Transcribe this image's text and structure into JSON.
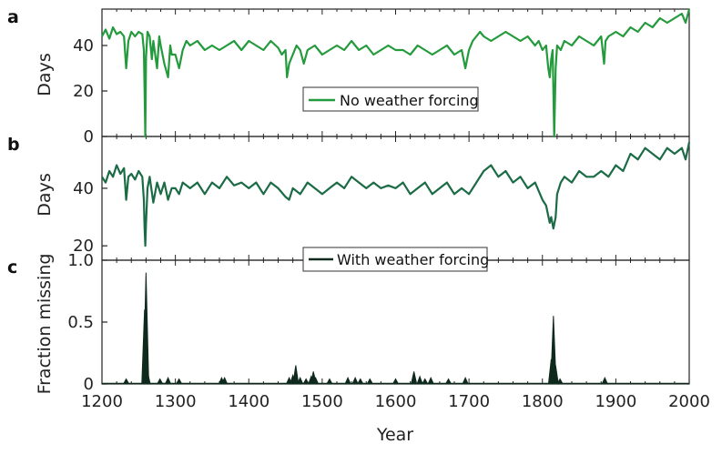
{
  "colors": {
    "series_a": "#239a3b",
    "series_b": "#1b6b45",
    "series_c": "#0f2a1c"
  },
  "chart_data": [
    {
      "panel": "a",
      "type": "line",
      "ylabel": "Days",
      "xlim": [
        1200,
        2000
      ],
      "ylim": [
        0,
        56
      ],
      "yticks": [
        0,
        20,
        40
      ],
      "legend": {
        "entry": "No weather forcing",
        "placement": "lower-center"
      },
      "series": [
        {
          "name": "No weather forcing",
          "x": [
            1200,
            1205,
            1210,
            1215,
            1220,
            1225,
            1230,
            1233,
            1236,
            1240,
            1245,
            1250,
            1255,
            1257,
            1258,
            1259,
            1260,
            1262,
            1265,
            1268,
            1270,
            1275,
            1278,
            1280,
            1285,
            1290,
            1293,
            1295,
            1300,
            1305,
            1310,
            1315,
            1320,
            1330,
            1340,
            1350,
            1360,
            1370,
            1380,
            1390,
            1400,
            1410,
            1420,
            1430,
            1440,
            1445,
            1450,
            1452,
            1455,
            1460,
            1465,
            1470,
            1475,
            1480,
            1490,
            1500,
            1510,
            1520,
            1530,
            1540,
            1550,
            1560,
            1570,
            1580,
            1590,
            1600,
            1610,
            1620,
            1630,
            1640,
            1650,
            1660,
            1670,
            1680,
            1690,
            1695,
            1700,
            1705,
            1710,
            1715,
            1720,
            1730,
            1740,
            1750,
            1760,
            1770,
            1780,
            1790,
            1795,
            1800,
            1805,
            1808,
            1810,
            1812,
            1814,
            1816,
            1818,
            1820,
            1825,
            1830,
            1840,
            1850,
            1860,
            1870,
            1880,
            1884,
            1886,
            1890,
            1900,
            1910,
            1920,
            1930,
            1940,
            1950,
            1960,
            1970,
            1980,
            1990,
            1995,
            2000
          ],
          "y": [
            44,
            47,
            43,
            48,
            45,
            46,
            44,
            30,
            42,
            46,
            44,
            46,
            45,
            38,
            20,
            0,
            35,
            46,
            44,
            34,
            42,
            30,
            44,
            40,
            32,
            26,
            40,
            36,
            36,
            30,
            38,
            42,
            40,
            42,
            38,
            40,
            38,
            40,
            42,
            38,
            42,
            40,
            38,
            42,
            39,
            36,
            38,
            26,
            32,
            36,
            40,
            38,
            32,
            38,
            40,
            36,
            38,
            40,
            38,
            42,
            38,
            40,
            36,
            38,
            40,
            38,
            38,
            36,
            40,
            38,
            36,
            38,
            40,
            36,
            38,
            30,
            38,
            42,
            44,
            46,
            44,
            42,
            44,
            46,
            44,
            42,
            44,
            40,
            42,
            38,
            40,
            30,
            26,
            34,
            38,
            0,
            30,
            40,
            38,
            42,
            40,
            44,
            42,
            40,
            44,
            32,
            42,
            44,
            46,
            44,
            48,
            46,
            50,
            48,
            52,
            50,
            52,
            54,
            50,
            56
          ]
        }
      ]
    },
    {
      "panel": "b",
      "type": "line",
      "ylabel": "Days",
      "xlim": [
        1200,
        2000
      ],
      "ylim": [
        15,
        58
      ],
      "yticks": [
        20,
        40
      ],
      "legend": {
        "entry": "With weather forcing",
        "placement": "lower-center"
      },
      "series": [
        {
          "name": "With weather forcing",
          "x": [
            1200,
            1205,
            1210,
            1215,
            1220,
            1225,
            1230,
            1233,
            1236,
            1240,
            1245,
            1250,
            1255,
            1257,
            1258,
            1259,
            1260,
            1262,
            1265,
            1270,
            1275,
            1280,
            1285,
            1290,
            1295,
            1300,
            1305,
            1310,
            1320,
            1330,
            1340,
            1350,
            1360,
            1370,
            1380,
            1390,
            1400,
            1410,
            1420,
            1430,
            1440,
            1450,
            1455,
            1460,
            1470,
            1480,
            1490,
            1500,
            1510,
            1520,
            1530,
            1540,
            1550,
            1560,
            1570,
            1580,
            1590,
            1600,
            1610,
            1620,
            1630,
            1640,
            1650,
            1660,
            1670,
            1680,
            1690,
            1700,
            1710,
            1720,
            1730,
            1740,
            1750,
            1760,
            1770,
            1780,
            1790,
            1800,
            1805,
            1810,
            1812,
            1815,
            1818,
            1820,
            1825,
            1830,
            1840,
            1850,
            1860,
            1870,
            1880,
            1890,
            1900,
            1910,
            1920,
            1930,
            1940,
            1950,
            1960,
            1970,
            1980,
            1990,
            1995,
            2000
          ],
          "y": [
            44,
            42,
            46,
            44,
            48,
            45,
            47,
            36,
            44,
            45,
            43,
            46,
            44,
            36,
            26,
            20,
            28,
            40,
            44,
            35,
            42,
            38,
            42,
            36,
            40,
            40,
            38,
            42,
            40,
            42,
            38,
            42,
            40,
            44,
            41,
            42,
            40,
            42,
            38,
            42,
            40,
            37,
            36,
            40,
            38,
            42,
            40,
            38,
            40,
            42,
            40,
            44,
            42,
            40,
            42,
            40,
            41,
            40,
            42,
            38,
            40,
            42,
            38,
            40,
            42,
            38,
            40,
            38,
            42,
            46,
            48,
            44,
            46,
            42,
            44,
            40,
            42,
            36,
            34,
            28,
            30,
            26,
            30,
            38,
            42,
            44,
            42,
            46,
            44,
            44,
            46,
            44,
            48,
            46,
            52,
            50,
            54,
            52,
            50,
            54,
            52,
            54,
            50,
            56
          ]
        }
      ]
    },
    {
      "panel": "c",
      "type": "area",
      "ylabel": "Fraction missing",
      "xlabel": "Year",
      "xlim": [
        1200,
        2000
      ],
      "ylim": [
        0,
        1.0
      ],
      "yticks": [
        0,
        0.5,
        1.0
      ],
      "xticks": [
        1200,
        1300,
        1400,
        1500,
        1600,
        1700,
        1800,
        1900,
        2000
      ],
      "spikes": {
        "x": [
          1233,
          1258,
          1260,
          1262,
          1279,
          1290,
          1305,
          1363,
          1367,
          1455,
          1460,
          1464,
          1470,
          1478,
          1485,
          1488,
          1491,
          1510,
          1535,
          1545,
          1552,
          1565,
          1600,
          1625,
          1633,
          1640,
          1648,
          1672,
          1695,
          1812,
          1815,
          1818,
          1824,
          1885
        ],
        "y": [
          0.04,
          0.6,
          0.9,
          0.1,
          0.04,
          0.05,
          0.04,
          0.05,
          0.05,
          0.05,
          0.07,
          0.15,
          0.05,
          0.04,
          0.06,
          0.1,
          0.05,
          0.04,
          0.05,
          0.05,
          0.04,
          0.04,
          0.04,
          0.1,
          0.06,
          0.04,
          0.05,
          0.04,
          0.05,
          0.2,
          0.55,
          0.15,
          0.04,
          0.05
        ]
      }
    }
  ],
  "panel_letters": {
    "a": "a",
    "b": "b",
    "c": "c"
  },
  "xaxis_title": "Year",
  "legends": {
    "a": "No weather forcing",
    "b": "With weather forcing"
  }
}
